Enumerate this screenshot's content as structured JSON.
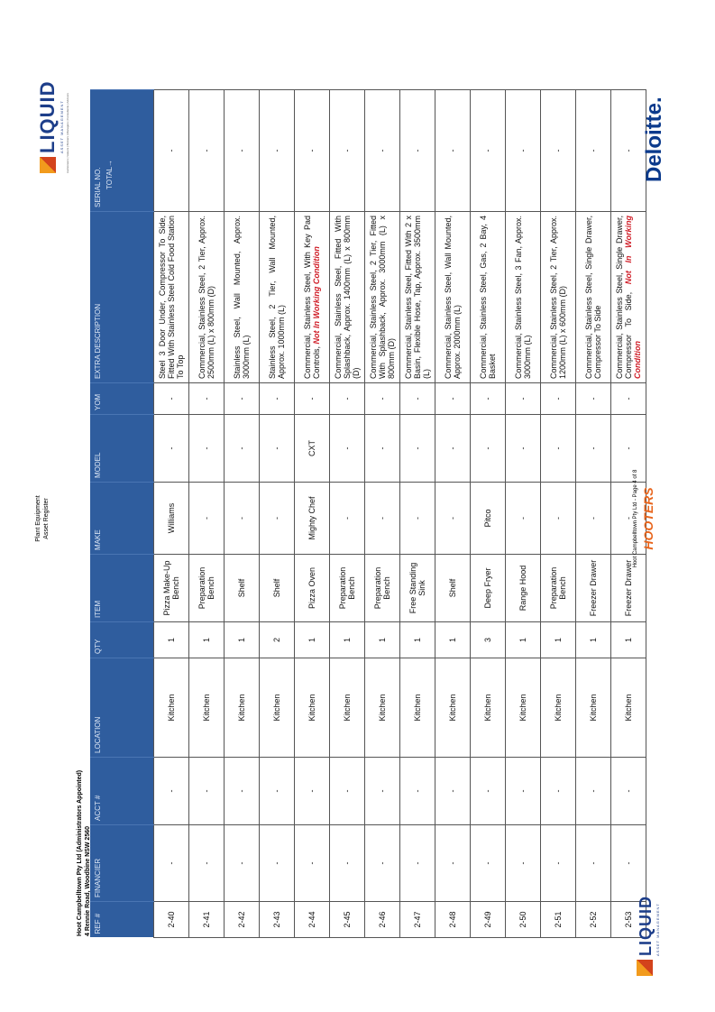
{
  "header": {
    "doc_title": "Plant Equipment",
    "doc_subtitle": "Asset Register",
    "company": "Hoot Campbelltown Pty Ltd (Administrators Appointed)",
    "address": "4 Rennie Road, Woodbine NSW 2560"
  },
  "logo": {
    "name": "LIQUID",
    "tagline": "ASSET MANAGEMENT",
    "services": "Auctioneers | Valuers | Brokers | Managers | Consultants | Advisors"
  },
  "table": {
    "headers": [
      "REF #",
      "FINANCIER",
      "ACCT #",
      "LOCATION",
      "QTY",
      "ITEM",
      "MAKE",
      "MODEL",
      "YOM",
      "EXTRA DESCRIPTION",
      "SERIAL NO."
    ],
    "total_label": "TOTAL→",
    "rows": [
      {
        "cells": [
          "2-40",
          "-",
          "-",
          "Kitchen",
          "1",
          "Pizza Make-Up Bench",
          "Williams",
          "-",
          "-",
          "Steel 3 Door Under, Compressor To Side, Fitted With Stainless Steel Cold Food Station To Top",
          "-"
        ]
      },
      {
        "cells": [
          "2-41",
          "-",
          "-",
          "Kitchen",
          "1",
          "Preparation Bench",
          "-",
          "-",
          "-",
          "Commercial, Stainless Steel, 2 Tier, Approx. 2500mm (L) x 800mm (D)",
          "-"
        ]
      },
      {
        "cells": [
          "2-42",
          "-",
          "-",
          "Kitchen",
          "1",
          "Shelf",
          "-",
          "-",
          "-",
          "Stainless Steel, Wall Mounted, Approx. 3000mm (L)",
          "-"
        ]
      },
      {
        "cells": [
          "2-43",
          "-",
          "-",
          "Kitchen",
          "2",
          "Shelf",
          "-",
          "-",
          "-",
          "Stainless Steel, 2 Tier, Wall Mounted, Approx. 1000mm (L)",
          "-"
        ]
      },
      {
        "cells": [
          "2-44",
          "-",
          "-",
          "Kitchen",
          "1",
          "Pizza Oven",
          "Mighty Chef",
          "CXT",
          "-",
          "Commercial, Stainless Steel, With Key Pad Controls,",
          "-"
        ],
        "note": "Not In Working Condition"
      },
      {
        "cells": [
          "2-45",
          "-",
          "-",
          "Kitchen",
          "1",
          "Preparation Bench",
          "-",
          "-",
          "-",
          "Commercial, Stainless Steel, Fitted With Splashback, Approx. 1400mm (L) x 800mm (D)",
          "-"
        ]
      },
      {
        "cells": [
          "2-46",
          "-",
          "-",
          "Kitchen",
          "1",
          "Preparation Bench",
          "-",
          "-",
          "-",
          "Commercial, Stainless Steel, 2 Tier, Fitted With Splashback, Approx. 3000mm (L) x 800mm (D)",
          "-"
        ]
      },
      {
        "cells": [
          "2-47",
          "-",
          "-",
          "Kitchen",
          "1",
          "Free Standing Sink",
          "-",
          "-",
          "-",
          "Commercial, Stainless Steel, Fitted With 2 x Basin, Flexible Hose, Tap, Approx. 3500mm (L)",
          "-"
        ]
      },
      {
        "cells": [
          "2-48",
          "-",
          "-",
          "Kitchen",
          "1",
          "Shelf",
          "-",
          "-",
          "-",
          "Commercial, Stainless Steel, Wall Mounted, Approx. 2000mm (L)",
          "-"
        ]
      },
      {
        "cells": [
          "2-49",
          "-",
          "-",
          "Kitchen",
          "3",
          "Deep Fryer",
          "Pitco",
          "-",
          "-",
          "Commercial, Stainless Steel, Gas, 2 Bay, 4 Basket",
          "-"
        ]
      },
      {
        "cells": [
          "2-50",
          "-",
          "-",
          "Kitchen",
          "1",
          "Range Hood",
          "-",
          "-",
          "-",
          "Commercial, Stainless Steel, 3 Fan, Approx. 3000mm (L)",
          "-"
        ]
      },
      {
        "cells": [
          "2-51",
          "-",
          "-",
          "Kitchen",
          "1",
          "Preparation Bench",
          "-",
          "-",
          "-",
          "Commercial, Stainless Steel, 2 Tier, Approx. 1200mm (L) x 600mm (D)",
          "-"
        ]
      },
      {
        "cells": [
          "2-52",
          "-",
          "-",
          "Kitchen",
          "1",
          "Freezer Drawer",
          "-",
          "-",
          "-",
          "Commercial, Stainless Steel, Single Drawer, Compressor To Side",
          "-"
        ]
      },
      {
        "cells": [
          "2-53",
          "-",
          "-",
          "Kitchen",
          "1",
          "Freezer Drawer",
          "-",
          "-",
          "-",
          "Commercial, Stainless Steel, Single Drawer, Compressor To Side,",
          "-"
        ],
        "note": "Not In Working Condition"
      }
    ]
  },
  "footer": {
    "page": "Hoot Campbelltown Pty Ltd - Page 4 of 8",
    "hooters": "HOOTERS",
    "deloitte": "Deloitte."
  }
}
